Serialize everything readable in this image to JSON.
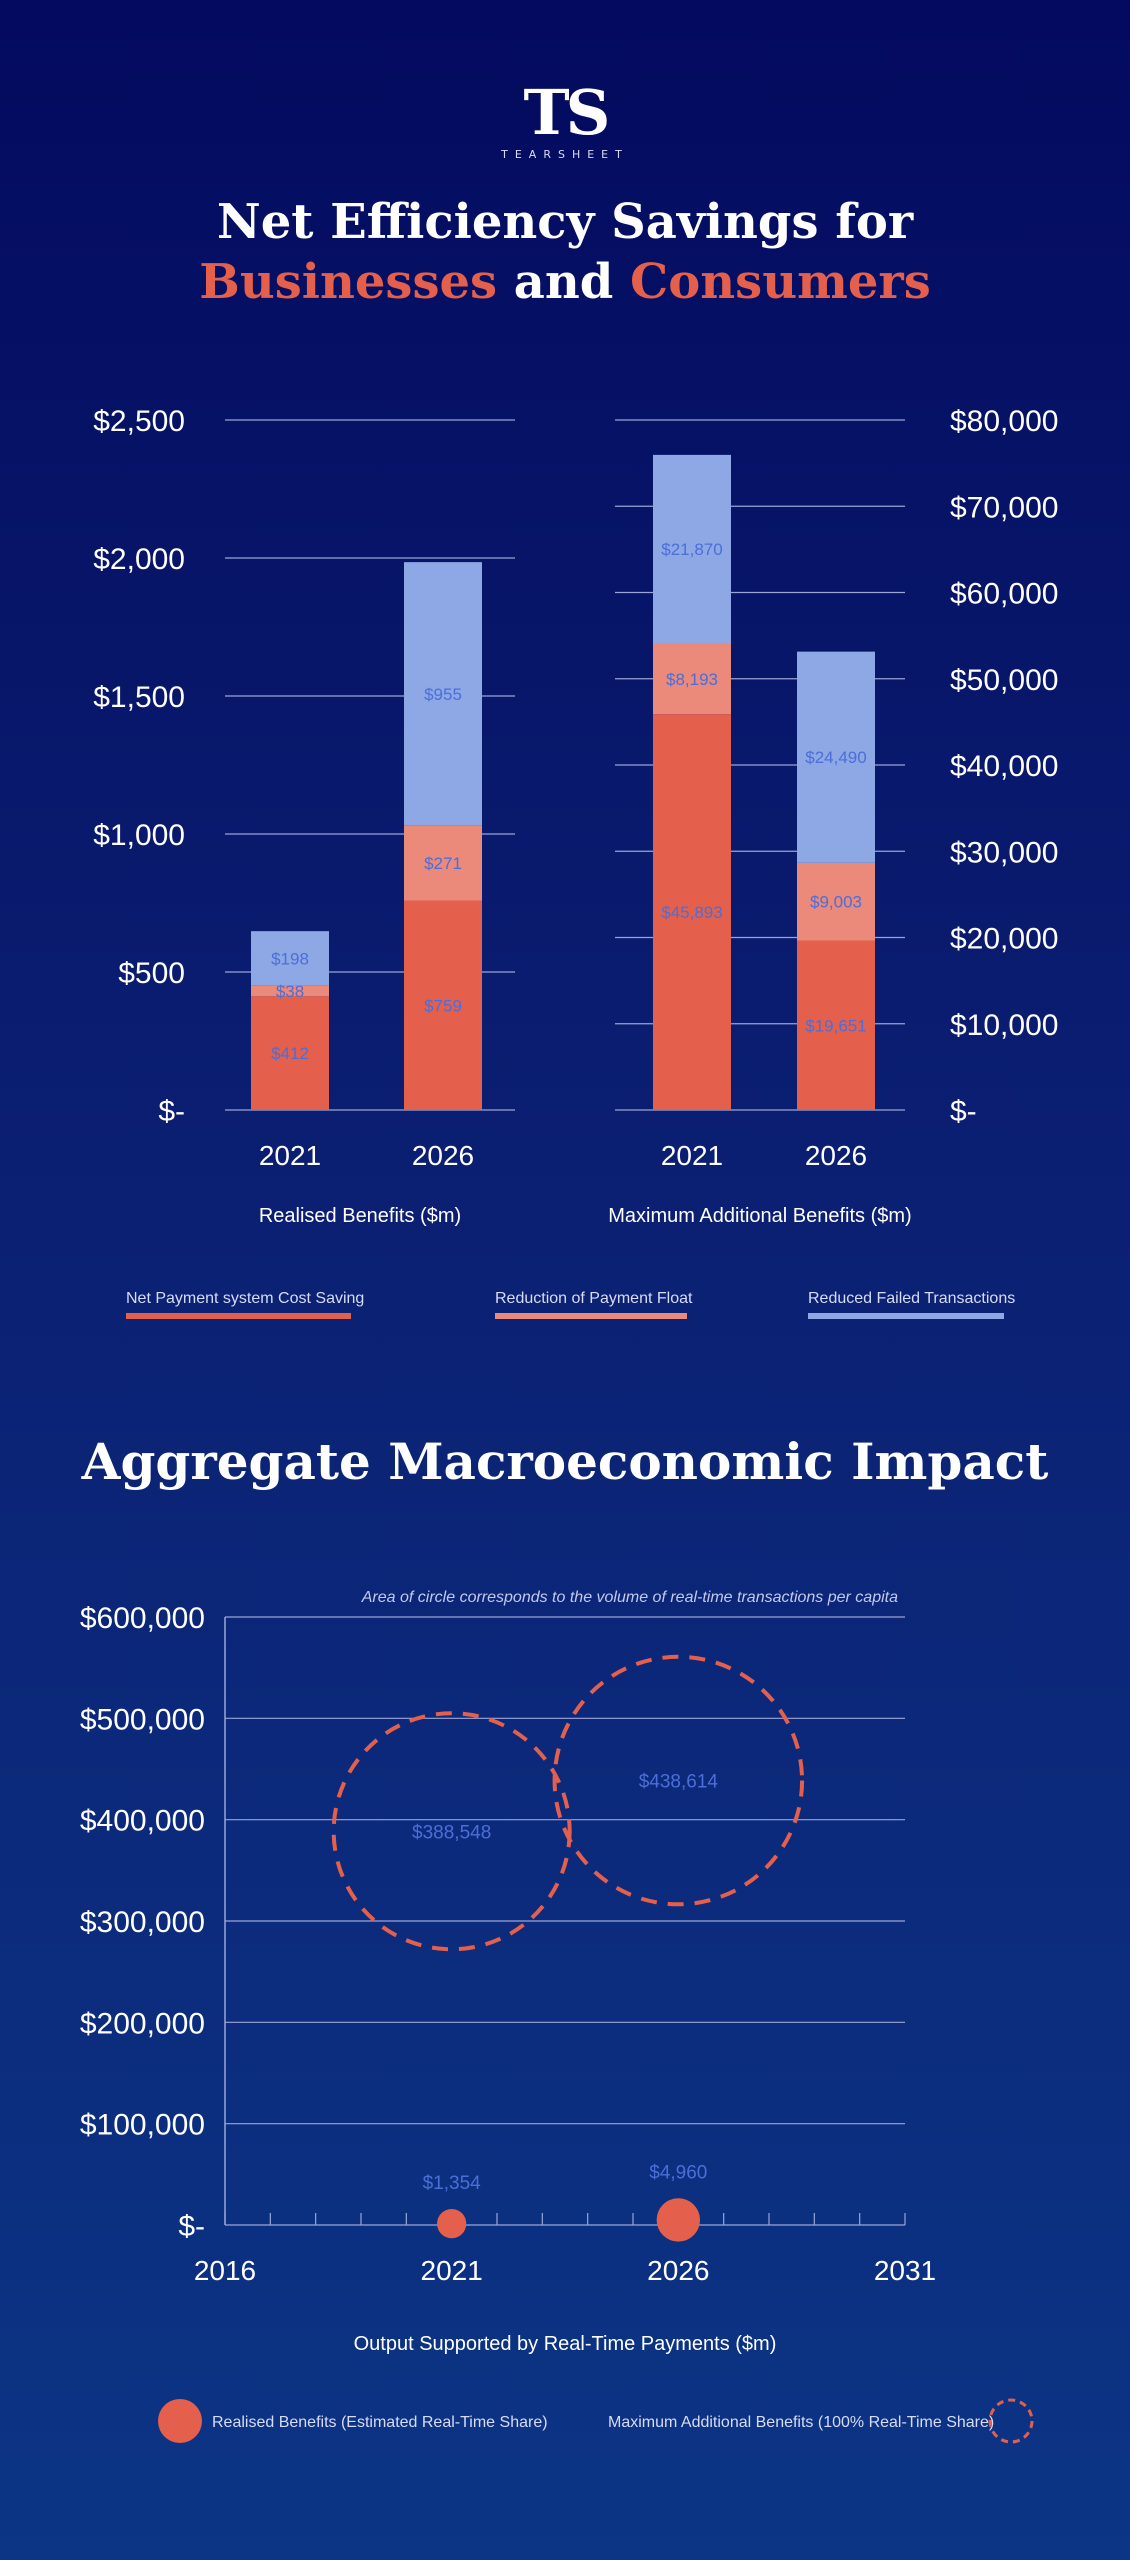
{
  "logo": {
    "mark": "TS",
    "sub": "TEARSHEET"
  },
  "title1": {
    "line1": "Net Efficiency Savings for",
    "word1": "Businesses",
    "word2": "and",
    "word3": "Consumers"
  },
  "title2": "Aggregate Macroeconomic Impact",
  "colors": {
    "net_cost_saving": "#e4604c",
    "payment_float": "#eb8a7a",
    "failed_transactions": "#8ea8e6",
    "value_label": "#4b6ed8",
    "bubble": "#e4604c"
  },
  "chart_data": [
    {
      "type": "bar",
      "stacked": true,
      "categories": [
        "2021",
        "2026"
      ],
      "xlabel": "Realised Benefits ($m)",
      "ylim": [
        0,
        2500
      ],
      "yticks": [
        "$-",
        "$500",
        "$1,000",
        "$1,500",
        "$2,000",
        "$2,500"
      ],
      "ytick_values": [
        0,
        500,
        1000,
        1500,
        2000,
        2500
      ],
      "series": [
        {
          "name": "Net Payment system Cost Saving",
          "values": [
            412,
            759
          ],
          "labels": [
            "$412",
            "$759"
          ]
        },
        {
          "name": "Reduction of Payment Float",
          "values": [
            38,
            271
          ],
          "labels": [
            "$38",
            "$271"
          ]
        },
        {
          "name": "Reduced Failed Transactions",
          "values": [
            198,
            955
          ],
          "labels": [
            "$198",
            "$955"
          ]
        }
      ],
      "grid": true
    },
    {
      "type": "bar",
      "stacked": true,
      "categories": [
        "2021",
        "2026"
      ],
      "xlabel": "Maximum Additional Benefits ($m)",
      "ylim": [
        0,
        80000
      ],
      "yticks": [
        "$-",
        "$10,000",
        "$20,000",
        "$30,000",
        "$40,000",
        "$50,000",
        "$60,000",
        "$70,000",
        "$80,000"
      ],
      "ytick_values": [
        0,
        10000,
        20000,
        30000,
        40000,
        50000,
        60000,
        70000,
        80000
      ],
      "series": [
        {
          "name": "Net Payment system Cost Saving",
          "values": [
            45893,
            19651
          ],
          "labels": [
            "$45,893",
            "$19,651"
          ]
        },
        {
          "name": "Reduction of Payment Float",
          "values": [
            8193,
            9003
          ],
          "labels": [
            "$8,193",
            "$9,003"
          ]
        },
        {
          "name": "Reduced Failed Transactions",
          "values": [
            21870,
            24490
          ],
          "labels": [
            "$21,870",
            "$24,490"
          ]
        }
      ],
      "grid": true
    },
    {
      "type": "scatter",
      "bubble": true,
      "note": "Area of circle corresponds to the volume of  real-time transactions per capita",
      "xlabel": "Output Supported by Real-Time Payments ($m)",
      "xlim": [
        2016,
        2031
      ],
      "xticks": [
        "2016",
        "2021",
        "2026",
        "2031"
      ],
      "xtick_values": [
        2016,
        2021,
        2026,
        2031
      ],
      "ylim": [
        0,
        600000
      ],
      "yticks": [
        "$-",
        "$100,000",
        "$200,000",
        "$300,000",
        "$400,000",
        "$500,000",
        "$600,000"
      ],
      "ytick_values": [
        0,
        100000,
        200000,
        300000,
        400000,
        500000,
        600000
      ],
      "series": [
        {
          "name": "Realised Benefits (Estimated Real-Time Share)",
          "style": "solid",
          "points": [
            {
              "x": 2021,
              "y": 1354,
              "label": "$1,354",
              "size": 0.15
            },
            {
              "x": 2026,
              "y": 4960,
              "label": "$4,960",
              "size": 0.33
            }
          ]
        },
        {
          "name": "Maximum Additional Benefits (100% Real-Time Share)",
          "style": "dashed",
          "points": [
            {
              "x": 2021,
              "y": 388548,
              "label": "$388,548",
              "size": 1.0
            },
            {
              "x": 2026,
              "y": 438614,
              "label": "$438,614",
              "size": 1.1
            }
          ]
        }
      ],
      "grid": true
    }
  ],
  "legend": [
    {
      "label": "Net Payment system Cost Saving"
    },
    {
      "label": "Reduction of Payment Float"
    },
    {
      "label": "Reduced Failed Transactions"
    }
  ],
  "bubble_legend": {
    "solid": "Realised Benefits (Estimated Real-Time Share)",
    "dashed": "Maximum Additional Benefits (100% Real-Time Share)"
  }
}
